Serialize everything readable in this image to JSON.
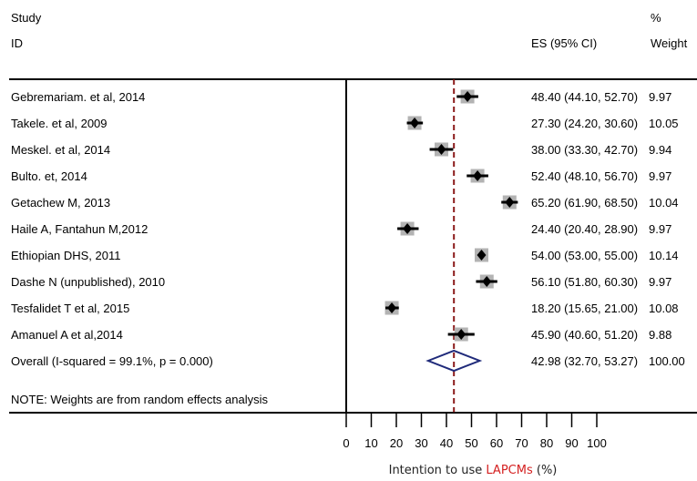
{
  "chart_data": {
    "type": "forest",
    "header": {
      "study_label": "Study",
      "id_label": "ID",
      "es_label": "ES (95% CI)",
      "weight_label_top": "%",
      "weight_label_bottom": "Weight"
    },
    "studies": [
      {
        "label": "Gebremariam. et al, 2014",
        "es": 48.4,
        "lo": 44.1,
        "hi": 52.7,
        "ci_text": "48.40 (44.10, 52.70)",
        "weight": "9.97"
      },
      {
        "label": "Takele. et al, 2009",
        "es": 27.3,
        "lo": 24.2,
        "hi": 30.6,
        "ci_text": "27.30 (24.20, 30.60)",
        "weight": "10.05"
      },
      {
        "label": "Meskel. et al, 2014",
        "es": 38.0,
        "lo": 33.3,
        "hi": 42.7,
        "ci_text": "38.00 (33.30, 42.70)",
        "weight": "9.94"
      },
      {
        "label": "Bulto. et, 2014",
        "es": 52.4,
        "lo": 48.1,
        "hi": 56.7,
        "ci_text": "52.40 (48.10, 56.70)",
        "weight": "9.97"
      },
      {
        "label": "Getachew M, 2013",
        "es": 65.2,
        "lo": 61.9,
        "hi": 68.5,
        "ci_text": "65.20 (61.90, 68.50)",
        "weight": "10.04"
      },
      {
        "label": "Haile A, Fantahun M,2012",
        "es": 24.4,
        "lo": 20.4,
        "hi": 28.9,
        "ci_text": "24.40 (20.40, 28.90)",
        "weight": "9.97"
      },
      {
        "label": "Ethiopian DHS, 2011",
        "es": 54.0,
        "lo": 53.0,
        "hi": 55.0,
        "ci_text": "54.00 (53.00, 55.00)",
        "weight": "10.14"
      },
      {
        "label": "Dashe N (unpublished), 2010",
        "es": 56.1,
        "lo": 51.8,
        "hi": 60.3,
        "ci_text": "56.10 (51.80, 60.30)",
        "weight": "9.97"
      },
      {
        "label": "Tesfalidet T et al, 2015",
        "es": 18.2,
        "lo": 15.65,
        "hi": 21.0,
        "ci_text": "18.20 (15.65, 21.00)",
        "weight": "10.08"
      },
      {
        "label": "Amanuel A et al,2014",
        "es": 45.9,
        "lo": 40.6,
        "hi": 51.2,
        "ci_text": "45.90 (40.60, 51.20)",
        "weight": "9.88"
      }
    ],
    "overall": {
      "label": "Overall  (I-squared = 99.1%, p = 0.000)",
      "es": 42.98,
      "lo": 32.7,
      "hi": 53.27,
      "ci_text": "42.98 (32.70, 53.27)",
      "weight": "100.00"
    },
    "note": "NOTE: Weights are from random effects analysis",
    "x_ticks": [
      0,
      10,
      20,
      30,
      40,
      50,
      60,
      70,
      80,
      90,
      100
    ],
    "xlim": [
      0,
      100
    ],
    "xlabel_prefix": "Intention to use ",
    "xlabel_highlight": "LAPCMs",
    "xlabel_suffix": " (%)",
    "colors": {
      "point": "#000000",
      "weight_box": "#b3b3b3",
      "reference_line": "#8b1a1a",
      "overall_diamond": "#1f2a7a",
      "highlight_text": "#d42020",
      "axis": "#000000"
    }
  }
}
